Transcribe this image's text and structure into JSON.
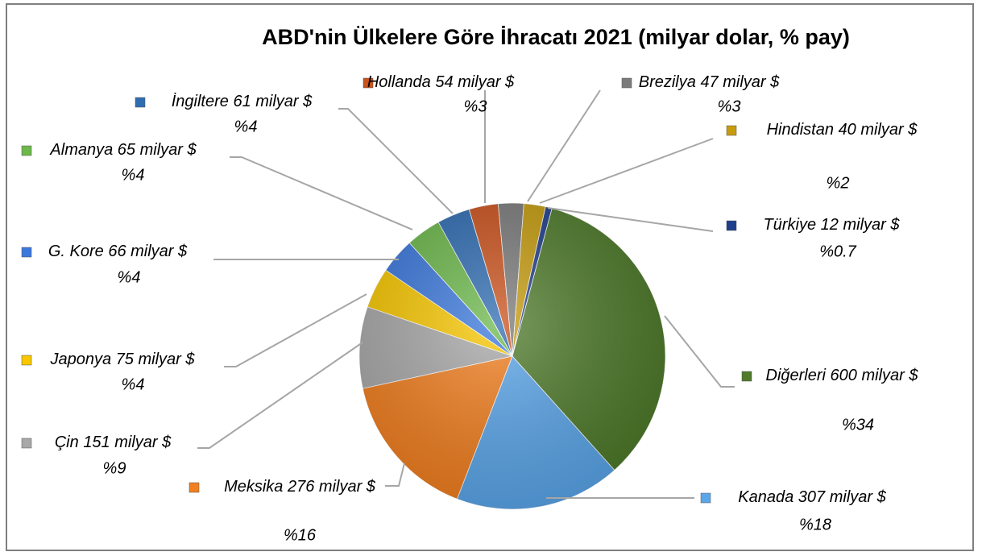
{
  "chart_data": {
    "type": "pie",
    "title": "ABD'nin Ülkelere Göre İhracatı 2021 (milyar dolar, % pay)",
    "categories": [
      "Diğerleri",
      "Kanada",
      "Meksika",
      "Çin",
      "Japonya",
      "G. Kore",
      "Almanya",
      "İngiltere",
      "Hollanda",
      "Brezilya",
      "Hindistan",
      "Türkiye"
    ],
    "values": [
      600,
      307,
      276,
      151,
      75,
      66,
      65,
      61,
      54,
      47,
      40,
      12
    ],
    "value_labels": [
      "600 milyar $",
      "307 milyar $",
      "276 milyar $",
      "151 milyar $",
      "75 milyar $",
      "66 milyar $",
      "65 milyar $",
      "61 milyar $",
      "54 milyar $",
      "47 milyar $",
      "40 milyar $",
      "12 milyar $"
    ],
    "shares": [
      34,
      18,
      16,
      9,
      4,
      4,
      4,
      4,
      3,
      3,
      2,
      0.7
    ],
    "share_labels": [
      "%34",
      "%18",
      "%16",
      "%9",
      "%4",
      "%4",
      "%4",
      "%4",
      "%3",
      "%3",
      "%2",
      "%0.7"
    ],
    "colors": [
      "#4f7b2b",
      "#5ba6ea",
      "#f27f1f",
      "#a8a8a8",
      "#f8c700",
      "#3b78dc",
      "#6cb84b",
      "#2f6cb2",
      "#cb521d",
      "#7b7b7b",
      "#c69c0e",
      "#1f3f8c"
    ]
  }
}
